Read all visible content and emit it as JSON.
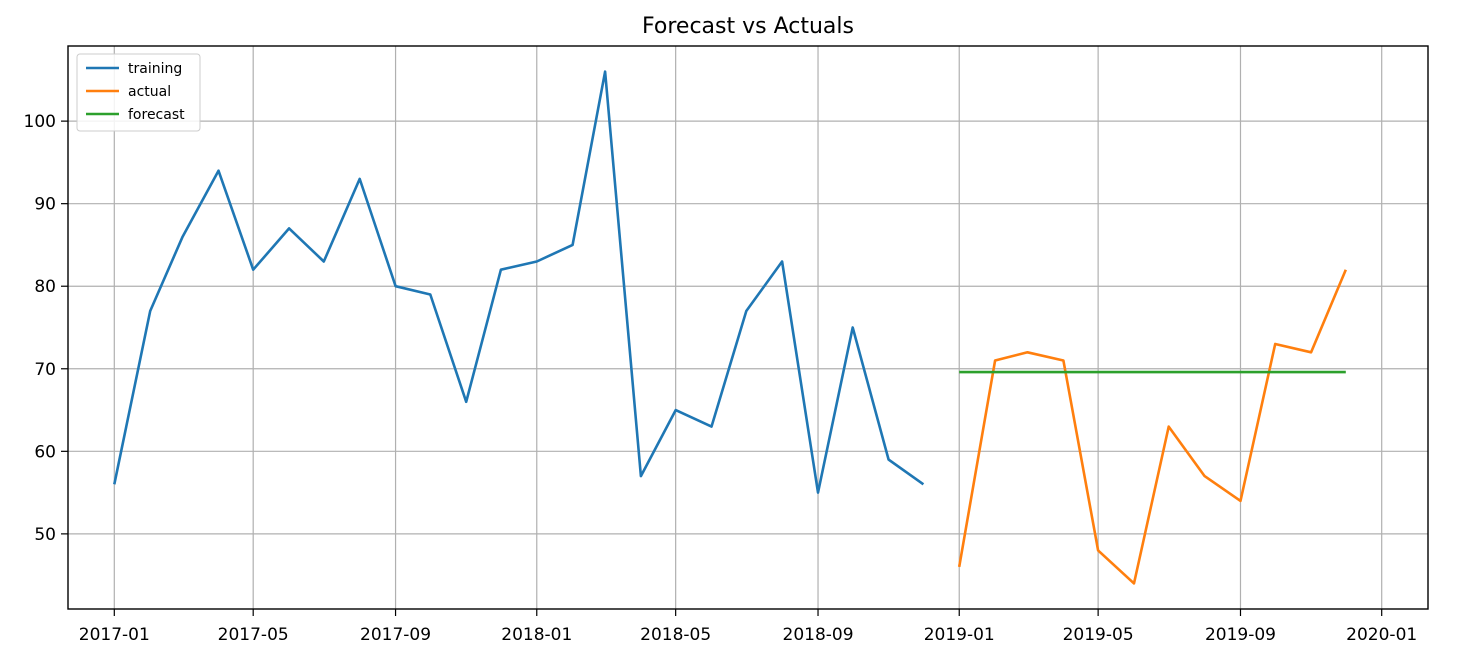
{
  "chart_data": {
    "type": "line",
    "title": "Forecast vs Actuals",
    "xlabel": "",
    "ylabel": "",
    "x_range": [
      "2016-11-22",
      "2020-02-10"
    ],
    "y_range": [
      40.9,
      109.1
    ],
    "x_ticks": [
      "2017-01",
      "2017-05",
      "2017-09",
      "2018-01",
      "2018-05",
      "2018-09",
      "2019-01",
      "2019-05",
      "2019-09",
      "2020-01"
    ],
    "y_ticks": [
      50,
      60,
      70,
      80,
      90,
      100
    ],
    "grid": true,
    "legend_position": "top-left",
    "series": [
      {
        "name": "training",
        "color": "#1f77b4",
        "x": [
          "2017-01-01",
          "2017-02-01",
          "2017-03-01",
          "2017-04-01",
          "2017-05-01",
          "2017-06-01",
          "2017-07-01",
          "2017-08-01",
          "2017-09-01",
          "2017-10-01",
          "2017-11-01",
          "2017-12-01",
          "2018-01-01",
          "2018-02-01",
          "2018-03-01",
          "2018-04-01",
          "2018-05-01",
          "2018-06-01",
          "2018-07-01",
          "2018-08-01",
          "2018-09-01",
          "2018-10-01",
          "2018-11-01",
          "2018-12-01"
        ],
        "y": [
          56,
          77,
          86,
          94,
          82,
          87,
          83,
          93,
          80,
          79,
          66,
          82,
          83,
          85,
          106,
          57,
          65,
          63,
          77,
          83,
          55,
          75,
          59,
          56
        ]
      },
      {
        "name": "actual",
        "color": "#ff7f0e",
        "x": [
          "2019-01-01",
          "2019-02-01",
          "2019-03-01",
          "2019-04-01",
          "2019-05-01",
          "2019-06-01",
          "2019-07-01",
          "2019-08-01",
          "2019-09-01",
          "2019-10-01",
          "2019-11-01",
          "2019-12-01"
        ],
        "y": [
          46,
          71,
          72,
          71,
          48,
          44,
          63,
          57,
          54,
          73,
          72,
          82
        ]
      },
      {
        "name": "forecast",
        "color": "#2ca02c",
        "x": [
          "2019-01-01",
          "2019-12-01"
        ],
        "y": [
          69.6,
          69.6
        ]
      }
    ]
  }
}
